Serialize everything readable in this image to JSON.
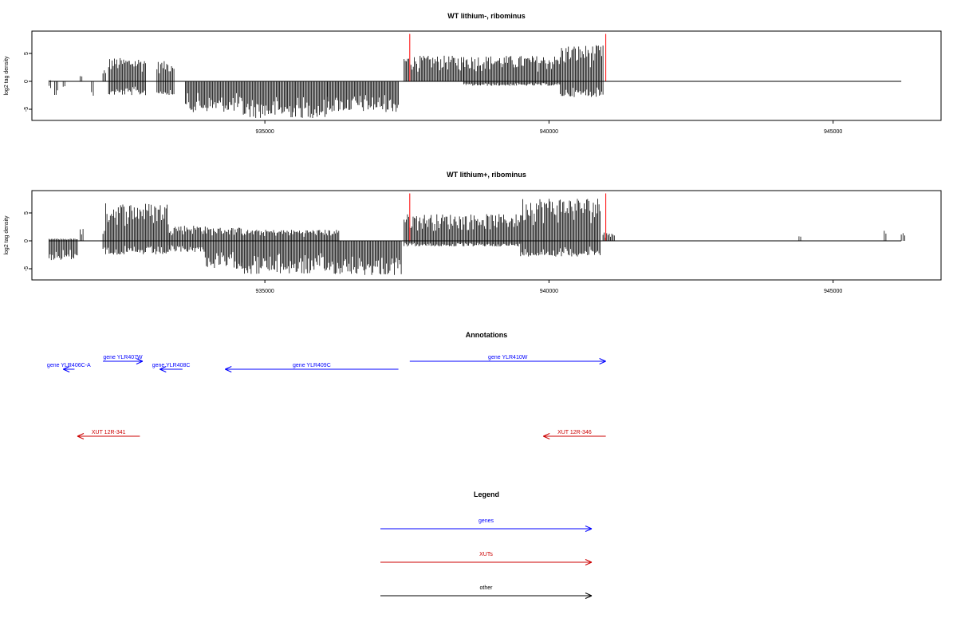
{
  "figure": {
    "annotations_title": "Annotations",
    "legend_title": "Legend"
  },
  "colors": {
    "signal": "#000000",
    "marker": "#ff0000",
    "gene": "#0000ff",
    "xut": "#cc0000",
    "other": "#000000",
    "axis": "#000000"
  },
  "chart_data": [
    {
      "type": "bar",
      "title": "WT lithium-, ribominus",
      "ylabel": "log2 tag density",
      "xlim": [
        930900,
        946900
      ],
      "ylim": [
        -7,
        9
      ],
      "x_ticks": [
        935000,
        940000,
        945000
      ],
      "y_ticks": [
        -5,
        0,
        5
      ],
      "track_range": [
        931200,
        946200
      ],
      "marker_positions": [
        937550,
        941000
      ],
      "marker_height": 8.5,
      "segments": [
        {
          "start": 931200,
          "end": 931230,
          "min": -1.2,
          "max": 0.2
        },
        {
          "start": 931300,
          "end": 931350,
          "min": -2.8,
          "max": 0
        },
        {
          "start": 931450,
          "end": 931480,
          "min": -1.0,
          "max": 0
        },
        {
          "start": 931750,
          "end": 931780,
          "min": 0,
          "max": 1.0
        },
        {
          "start": 931950,
          "end": 931980,
          "min": -2.8,
          "max": 0
        },
        {
          "start": 932150,
          "end": 932200,
          "min": 0,
          "max": 2.4
        },
        {
          "start": 932250,
          "end": 932900,
          "min": -2.5,
          "max": 4.2
        },
        {
          "start": 933100,
          "end": 933400,
          "min": -2.5,
          "max": 3.6
        },
        {
          "start": 933600,
          "end": 934600,
          "min": -5.5,
          "max": 0
        },
        {
          "start": 934600,
          "end": 936100,
          "min": -6.6,
          "max": 0
        },
        {
          "start": 936100,
          "end": 937350,
          "min": -5.5,
          "max": 0
        },
        {
          "start": 937450,
          "end": 938500,
          "min": 0,
          "max": 4.6
        },
        {
          "start": 938500,
          "end": 940200,
          "min": -0.8,
          "max": 4.6
        },
        {
          "start": 940200,
          "end": 940950,
          "min": -2.8,
          "max": 6.5
        }
      ]
    },
    {
      "type": "bar",
      "title": "WT lithium+, ribominus",
      "ylabel": "log2 tag density",
      "xlim": [
        930900,
        946900
      ],
      "ylim": [
        -7,
        9
      ],
      "x_ticks": [
        935000,
        940000,
        945000
      ],
      "y_ticks": [
        -5,
        0,
        5
      ],
      "track_range": [
        931200,
        946200
      ],
      "marker_positions": [
        937550,
        941000
      ],
      "marker_height": 8.5,
      "segments": [
        {
          "start": 931200,
          "end": 931700,
          "min": -3.5,
          "max": 0.4
        },
        {
          "start": 931750,
          "end": 931800,
          "min": 0,
          "max": 2.2
        },
        {
          "start": 932150,
          "end": 932200,
          "min": -1.5,
          "max": 2.0
        },
        {
          "start": 932200,
          "end": 933300,
          "min": -2.5,
          "max": 6.8
        },
        {
          "start": 933300,
          "end": 933950,
          "min": -2.0,
          "max": 2.8
        },
        {
          "start": 933950,
          "end": 934600,
          "min": -5.0,
          "max": 2.4
        },
        {
          "start": 934600,
          "end": 936300,
          "min": -6.0,
          "max": 2.0
        },
        {
          "start": 936300,
          "end": 937400,
          "min": -6.2,
          "max": 0
        },
        {
          "start": 937450,
          "end": 939500,
          "min": -1.0,
          "max": 4.8
        },
        {
          "start": 939500,
          "end": 940900,
          "min": -2.8,
          "max": 7.8
        },
        {
          "start": 940950,
          "end": 941150,
          "min": 0,
          "max": 1.5
        },
        {
          "start": 944400,
          "end": 944430,
          "min": 0,
          "max": 1.3
        },
        {
          "start": 945900,
          "end": 945930,
          "min": 0,
          "max": 2.0
        },
        {
          "start": 946200,
          "end": 946260,
          "min": 0,
          "max": 1.4
        }
      ]
    }
  ],
  "genes": [
    {
      "label": "gene YLR406C-A",
      "start": 931650,
      "end": 931450,
      "level": 1
    },
    {
      "label": "gene YLR407W",
      "start": 932150,
      "end": 932850,
      "level": 0
    },
    {
      "label": "gene YLR408C",
      "start": 933550,
      "end": 933150,
      "level": 1
    },
    {
      "label": "gene YLR409C",
      "start": 937350,
      "end": 934300,
      "level": 1
    },
    {
      "label": "gene YLR410W",
      "start": 937550,
      "end": 941000,
      "level": 0
    }
  ],
  "xuts": [
    {
      "label": "XUT 12R-341",
      "start": 932800,
      "end": 931700
    },
    {
      "label": "XUT 12R-346",
      "start": 941000,
      "end": 939900
    }
  ],
  "legend": [
    {
      "label": "genes",
      "color": "#0000ff"
    },
    {
      "label": "XUTs",
      "color": "#cc0000"
    },
    {
      "label": "other",
      "color": "#000000"
    }
  ]
}
